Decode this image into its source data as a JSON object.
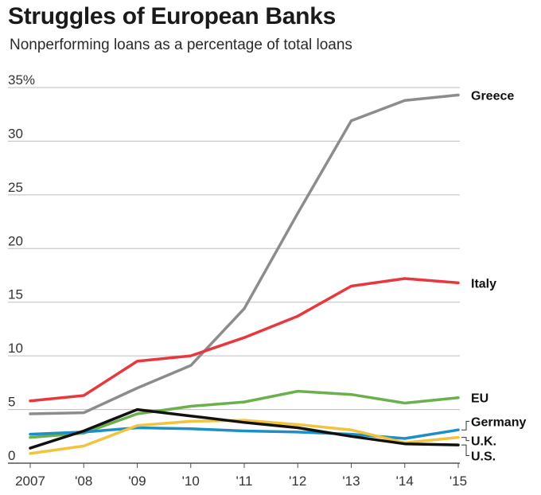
{
  "chart_data": {
    "type": "line",
    "title": "Struggles of European Banks",
    "subtitle": "Nonperforming loans as a percentage of total loans",
    "x": [
      2007,
      2008,
      2009,
      2010,
      2011,
      2012,
      2013,
      2014,
      2015
    ],
    "x_tick_labels": [
      "2007",
      "'08",
      "'09",
      "'10",
      "'11",
      "'12",
      "'13",
      "'14",
      "'15"
    ],
    "y_tick_labels": [
      "0",
      "5",
      "10",
      "15",
      "20",
      "25",
      "30",
      "35%"
    ],
    "ylim": [
      0,
      35
    ],
    "grid": "horizontal",
    "legend": "direct labels at right",
    "series": [
      {
        "name": "Greece",
        "color": "#8c8c8c",
        "values": [
          4.6,
          4.7,
          7.0,
          9.1,
          14.4,
          23.3,
          31.9,
          33.8,
          34.3
        ]
      },
      {
        "name": "Italy",
        "color": "#e8373d",
        "values": [
          5.8,
          6.3,
          9.5,
          10.0,
          11.7,
          13.7,
          16.5,
          17.2,
          16.8
        ]
      },
      {
        "name": "EU",
        "color": "#6ab04c",
        "values": [
          2.4,
          2.8,
          4.6,
          5.3,
          5.7,
          6.7,
          6.4,
          5.6,
          6.1
        ]
      },
      {
        "name": "Germany",
        "color": "#1b8fc6",
        "values": [
          2.7,
          2.9,
          3.3,
          3.2,
          3.0,
          2.9,
          2.7,
          2.3,
          3.1
        ]
      },
      {
        "name": "U.K.",
        "color": "#f2c43d",
        "values": [
          0.9,
          1.6,
          3.5,
          3.9,
          4.0,
          3.6,
          3.1,
          1.9,
          2.4
        ]
      },
      {
        "name": "U.S.",
        "color": "#111111",
        "values": [
          1.4,
          3.0,
          5.0,
          4.4,
          3.8,
          3.3,
          2.5,
          1.8,
          1.7
        ]
      }
    ]
  }
}
